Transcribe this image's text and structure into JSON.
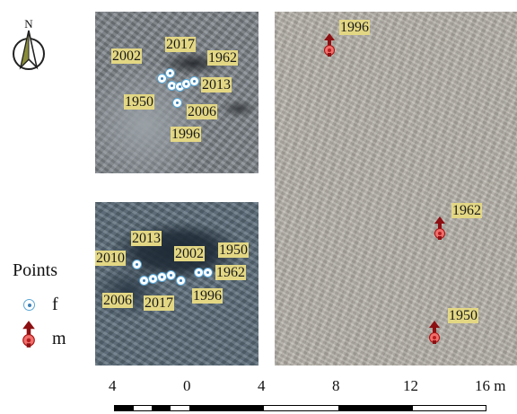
{
  "panels": {
    "top_left": {
      "labels": [
        "2002",
        "2017",
        "1962",
        "2013",
        "1950",
        "2006",
        "1996"
      ],
      "points": [
        {
          "class": "f",
          "count": 7
        }
      ]
    },
    "bottom_left": {
      "labels": [
        "2013",
        "2002",
        "1950",
        "2010",
        "1962",
        "2006",
        "2017",
        "1996"
      ],
      "points": [
        {
          "class": "f",
          "count": 8
        }
      ]
    },
    "right": {
      "labels": [
        "1996",
        "1962",
        "1950"
      ],
      "points": [
        {
          "class": "m",
          "count": 3
        }
      ]
    }
  },
  "north_arrow": {
    "label": "N",
    "icon": "north-arrow-icon"
  },
  "legend": {
    "title": "Points",
    "items": [
      {
        "label": "f",
        "icon": "blue-circle-point-icon",
        "color": "#5aa7d6"
      },
      {
        "label": "m",
        "icon": "red-arrow-point-icon",
        "color": "#b71c1c"
      }
    ]
  },
  "scale": {
    "ticks": [
      "4",
      "0",
      "4",
      "8",
      "12",
      "16 m"
    ]
  },
  "colors": {
    "label_background": "#e3d784",
    "f_marker": "#5aa7d6",
    "m_marker": "#b71c1c"
  }
}
